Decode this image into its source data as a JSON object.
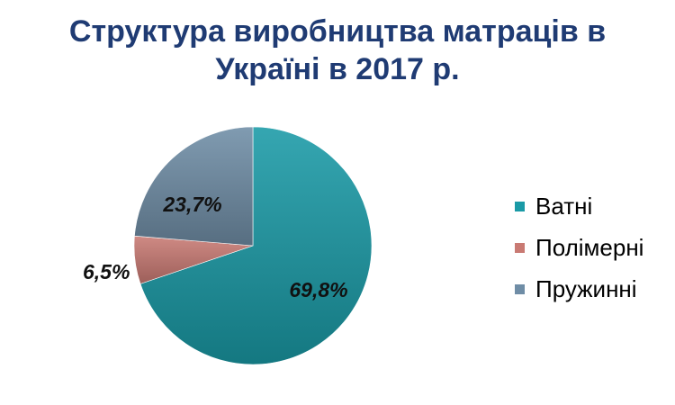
{
  "title": {
    "line1": "Структура виробництва  матраців в",
    "line2": "Україні в 2017 р."
  },
  "colors": {
    "title": "#1F3B73",
    "Ватні": "#1A9AA6",
    "Полімерні": "#C97A73",
    "Пружинні": "#6F8DA6"
  },
  "chart_data": {
    "type": "pie",
    "title": "Структура виробництва  матраців в Україні в 2017 р.",
    "start_angle_deg": 0,
    "direction": "clockwise",
    "legend_position": "right",
    "slices": [
      {
        "label": "Ватні",
        "value": 69.8,
        "display": "69,8%"
      },
      {
        "label": "Полімерні",
        "value": 6.5,
        "display": "6,5%"
      },
      {
        "label": "Пружинні",
        "value": 23.7,
        "display": "23,7%"
      }
    ]
  },
  "legend": {
    "items": [
      {
        "label": "Ватні"
      },
      {
        "label": "Полімерні"
      },
      {
        "label": "Пружинні"
      }
    ]
  }
}
